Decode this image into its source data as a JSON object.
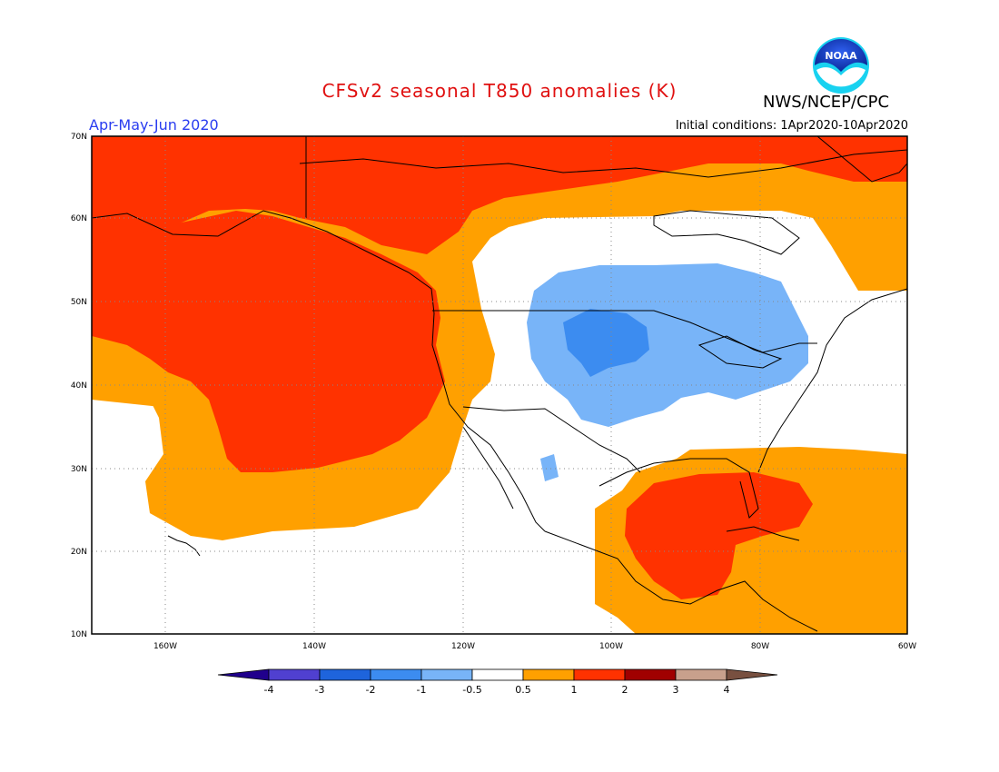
{
  "header": {
    "title": "CFSv2 seasonal T850 anomalies (K)",
    "agency": "NWS/NCEP/CPC",
    "logo_text": "NOAA",
    "period": "Apr-May-Jun 2020",
    "initial_conditions": "Initial conditions: 1Apr2020-10Apr2020"
  },
  "map": {
    "lon_range": [
      -170,
      -60
    ],
    "lat_range": [
      10,
      70
    ],
    "lat_ticks": [
      "70N",
      "60N",
      "50N",
      "40N",
      "30N",
      "20N",
      "10N"
    ],
    "lon_ticks": [
      "160W",
      "140W",
      "120W",
      "100W",
      "80W",
      "60W"
    ],
    "background_color": "#ffffff"
  },
  "colorbar": {
    "labels": [
      "-4",
      "-3",
      "-2",
      "-1",
      "-0.5",
      "0.5",
      "1",
      "2",
      "3",
      "4"
    ],
    "colors": [
      "#20008c",
      "#5040d0",
      "#1e64dc",
      "#3c8cf0",
      "#78b4f8",
      "#ffffff",
      "#ffa000",
      "#ff3200",
      "#a00000",
      "#c8a08c",
      "#785040"
    ]
  }
}
